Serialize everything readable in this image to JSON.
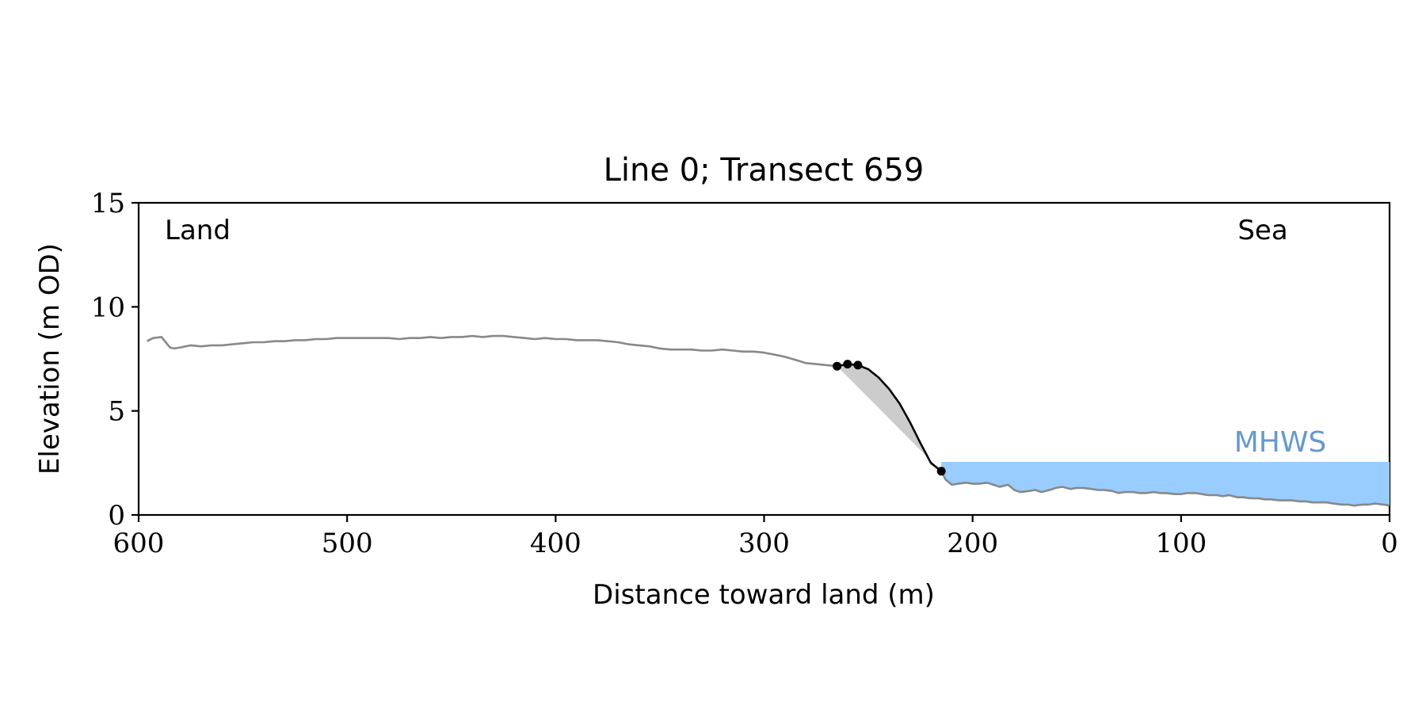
{
  "chart_data": {
    "type": "line",
    "title": "Line 0; Transect 659",
    "xlabel": "Distance toward land (m)",
    "ylabel": "Elevation (m OD)",
    "xlim": [
      600,
      0
    ],
    "ylim": [
      0,
      15
    ],
    "x_axis_reversed": true,
    "xticks": [
      600,
      500,
      400,
      300,
      200,
      100,
      0
    ],
    "xtick_labels": [
      "600",
      "500",
      "400",
      "300",
      "200",
      "100",
      "0"
    ],
    "yticks": [
      0,
      5,
      10,
      15
    ],
    "ytick_labels": [
      "0",
      "5",
      "10",
      "15"
    ],
    "grid": false,
    "annotations": {
      "land": "Land",
      "sea": "Sea",
      "mhws": "MHWS"
    },
    "colors": {
      "profile": "#888888",
      "cliff": "#000000",
      "shade": "#cccccc",
      "water": "#99ccff",
      "mhws_label": "#6699cc"
    },
    "mhws_level": 2.55,
    "profile": {
      "x": [
        596,
        593,
        589,
        587,
        585,
        583,
        580,
        575,
        570,
        565,
        560,
        555,
        550,
        545,
        540,
        535,
        530,
        525,
        520,
        515,
        510,
        505,
        500,
        495,
        490,
        485,
        480,
        475,
        470,
        465,
        460,
        455,
        450,
        445,
        440,
        435,
        430,
        425,
        420,
        415,
        410,
        405,
        400,
        395,
        390,
        385,
        380,
        375,
        370,
        365,
        360,
        355,
        350,
        345,
        340,
        335,
        330,
        325,
        320,
        315,
        310,
        305,
        300,
        295,
        290,
        285,
        280,
        275,
        270,
        265
      ],
      "y": [
        8.35,
        8.5,
        8.55,
        8.3,
        8.05,
        8.0,
        8.05,
        8.15,
        8.1,
        8.15,
        8.15,
        8.2,
        8.25,
        8.3,
        8.3,
        8.35,
        8.35,
        8.4,
        8.4,
        8.45,
        8.45,
        8.5,
        8.5,
        8.5,
        8.5,
        8.5,
        8.5,
        8.45,
        8.5,
        8.5,
        8.55,
        8.5,
        8.55,
        8.55,
        8.6,
        8.55,
        8.6,
        8.6,
        8.55,
        8.5,
        8.45,
        8.5,
        8.45,
        8.45,
        8.4,
        8.4,
        8.4,
        8.35,
        8.3,
        8.2,
        8.15,
        8.1,
        8.0,
        7.95,
        7.95,
        7.95,
        7.9,
        7.9,
        7.95,
        7.9,
        7.85,
        7.85,
        7.8,
        7.7,
        7.6,
        7.45,
        7.3,
        7.25,
        7.2,
        7.15
      ]
    },
    "cliff_profile": {
      "x": [
        265,
        260,
        255,
        250,
        245,
        240,
        235,
        230,
        225,
        220,
        215
      ],
      "y": [
        7.15,
        7.25,
        7.2,
        7.0,
        6.6,
        6.05,
        5.35,
        4.45,
        3.45,
        2.5,
        2.1
      ]
    },
    "cliff_points": {
      "x": [
        265,
        260,
        255,
        215
      ],
      "y": [
        7.15,
        7.25,
        7.2,
        2.1
      ]
    },
    "sea_profile": {
      "x": [
        215,
        213,
        210,
        207,
        203,
        200,
        197,
        193,
        190,
        187,
        183,
        180,
        177,
        173,
        170,
        167,
        163,
        160,
        157,
        153,
        150,
        147,
        143,
        140,
        137,
        133,
        130,
        127,
        123,
        120,
        117,
        113,
        110,
        107,
        103,
        100,
        97,
        93,
        90,
        87,
        83,
        80,
        77,
        73,
        70,
        67,
        63,
        60,
        57,
        53,
        50,
        47,
        43,
        40,
        37,
        33,
        30,
        27,
        23,
        20,
        17,
        13,
        10,
        7,
        3,
        0
      ],
      "y": [
        2.1,
        1.7,
        1.45,
        1.5,
        1.55,
        1.5,
        1.5,
        1.55,
        1.45,
        1.35,
        1.45,
        1.2,
        1.1,
        1.15,
        1.2,
        1.1,
        1.2,
        1.3,
        1.35,
        1.25,
        1.3,
        1.3,
        1.25,
        1.2,
        1.2,
        1.15,
        1.05,
        1.1,
        1.1,
        1.05,
        1.05,
        1.1,
        1.05,
        1.05,
        1.0,
        1.0,
        1.05,
        1.05,
        1.0,
        0.95,
        0.95,
        0.9,
        0.95,
        0.85,
        0.85,
        0.8,
        0.8,
        0.75,
        0.75,
        0.7,
        0.7,
        0.7,
        0.65,
        0.65,
        0.6,
        0.6,
        0.6,
        0.55,
        0.5,
        0.5,
        0.45,
        0.5,
        0.5,
        0.55,
        0.5,
        0.45
      ]
    }
  }
}
